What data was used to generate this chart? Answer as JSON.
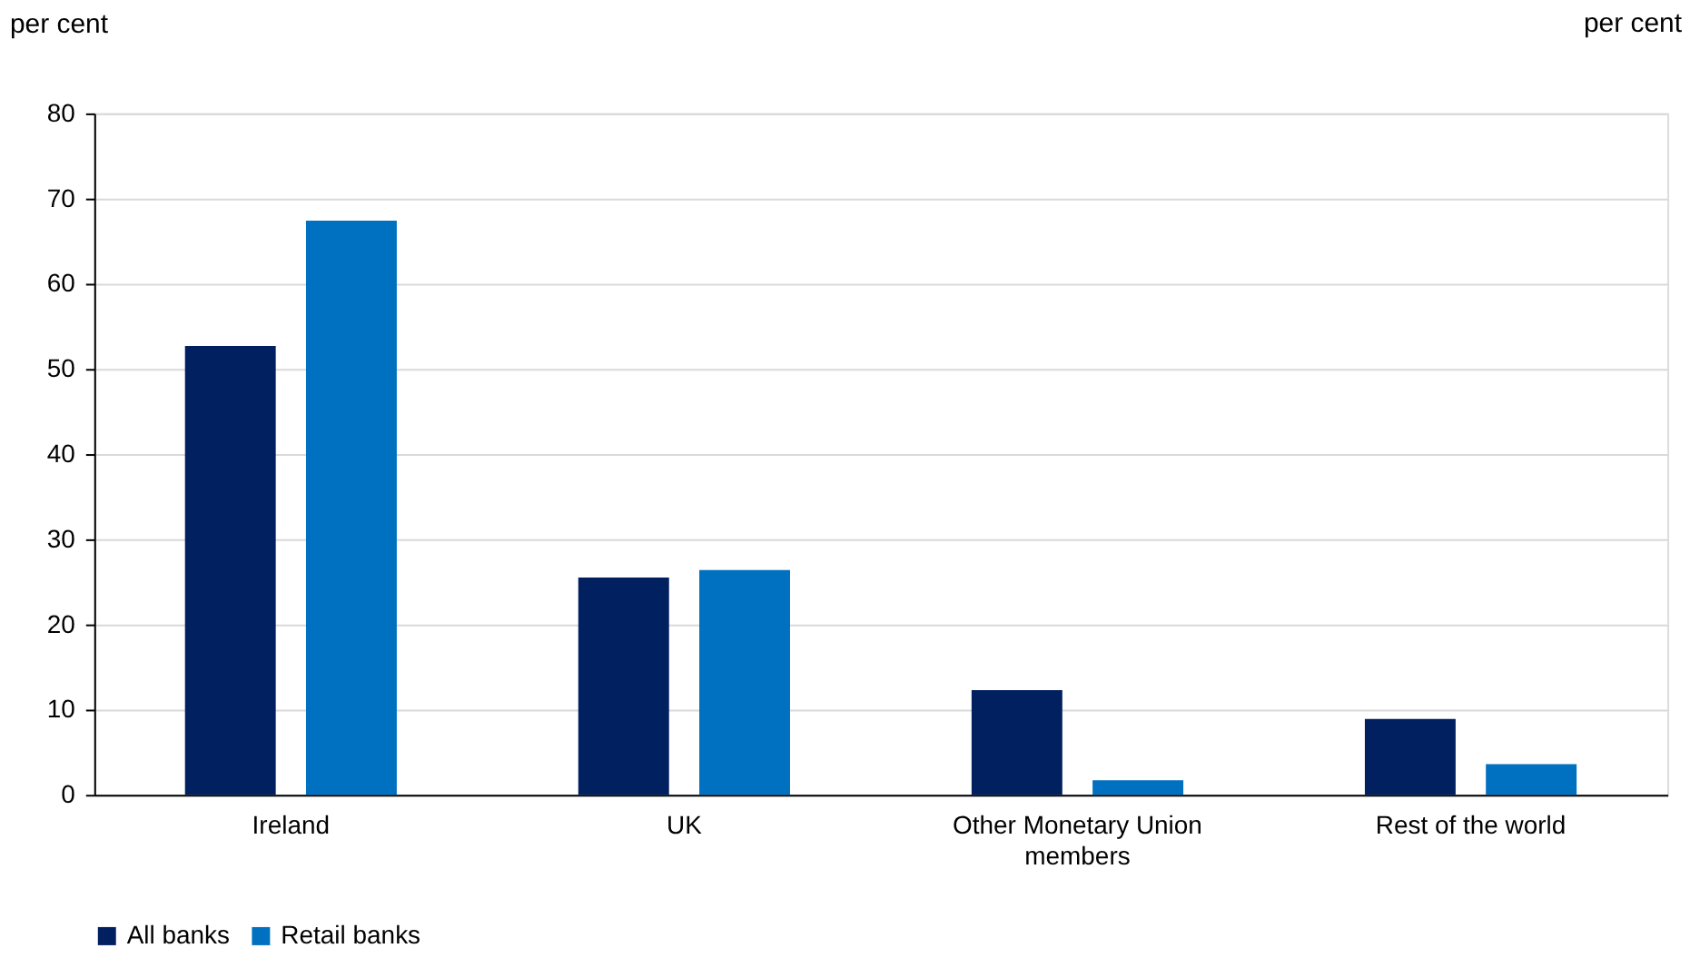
{
  "chart_data": {
    "type": "bar",
    "ylabel": "per cent",
    "annotations": [
      "per cent"
    ],
    "categories": [
      "Ireland",
      "UK",
      "Other Monetary Union members",
      "Rest of the world"
    ],
    "series": [
      {
        "name": "All banks",
        "color": "#002060",
        "values": [
          52.7,
          25.5,
          12.3,
          8.9
        ]
      },
      {
        "name": "Retail banks",
        "color": "#0070c0",
        "values": [
          67.4,
          26.4,
          1.7,
          3.6
        ]
      }
    ],
    "ylim": [
      0,
      80
    ],
    "yticks": [
      0,
      10,
      20,
      30,
      40,
      50,
      60,
      70,
      80
    ],
    "grid": "y",
    "legend": "bottom"
  }
}
